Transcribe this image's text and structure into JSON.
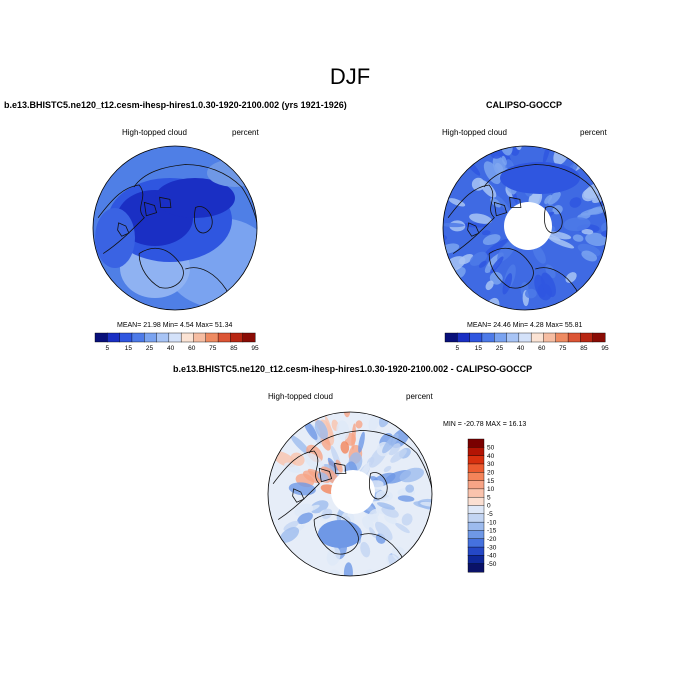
{
  "main_title": "DJF",
  "panels": [
    {
      "title": "b.e13.BHISTC5.ne120_t12.cesm-ihesp-hires1.0.30-1920-2100.002 (yrs 1921-1926)",
      "left_string": "High-topped cloud",
      "right_string": "percent",
      "stats": {
        "mean": "21.98",
        "min": "4.54",
        "max": "51.34"
      },
      "stats_text": "MEAN=  21.98  Min=    4.54  Max=  51.34",
      "pole_gap": false
    },
    {
      "title": "CALIPSO-GOCCP",
      "left_string": "High-topped cloud",
      "right_string": "percent",
      "stats": {
        "mean": "24.46",
        "min": "4.28",
        "max": "55.81"
      },
      "stats_text": "MEAN=  24.46  Min=    4.28  Max=  55.81",
      "pole_gap": true
    },
    {
      "title": "b.e13.BHISTC5.ne120_t12.cesm-ihesp-hires1.0.30-1920-2100.002 - CALIPSO-GOCCP",
      "left_string": "High-topped cloud",
      "right_string": "percent",
      "stats": {
        "min": "-20.78",
        "max": "16.13"
      },
      "stats_text": "MIN = -20.78 MAX =  16.13",
      "pole_gap": true
    }
  ],
  "colorbars": {
    "absolute": {
      "labels": [
        "5",
        "15",
        "25",
        "40",
        "60",
        "75",
        "85",
        "95"
      ],
      "colors": [
        "#08107a",
        "#1a2fc4",
        "#2f56e0",
        "#4d7ae8",
        "#7aa3f0",
        "#a8c4f5",
        "#d4e2fa",
        "#fbe3d4",
        "#f6bda2",
        "#ee8b62",
        "#dc5535",
        "#b82612",
        "#8a0c05"
      ]
    },
    "difference": {
      "labels": [
        "50",
        "40",
        "30",
        "20",
        "15",
        "10",
        "5",
        "0",
        "-5",
        "-10",
        "-15",
        "-20",
        "-30",
        "-40",
        "-50"
      ],
      "colors": [
        "#7a0000",
        "#b31404",
        "#d8300f",
        "#ec5b30",
        "#f4845a",
        "#f7a486",
        "#fac3ad",
        "#fbdfd2",
        "#dfe8f8",
        "#c3d5f3",
        "#9dbbee",
        "#6f98e6",
        "#4571de",
        "#2548c6",
        "#0f289a",
        "#0a1268"
      ]
    }
  },
  "chart_data": [
    {
      "type": "heatmap",
      "title": "b.e13.BHISTC5.ne120_t12.cesm-ihesp-hires1.0.30-1920-2100.002 (yrs 1921-1926)",
      "variable": "High-topped cloud",
      "units": "percent",
      "projection": "north polar stereographic",
      "season": "DJF",
      "mean": 21.98,
      "min": 4.54,
      "max": 51.34,
      "contour_levels": [
        5,
        10,
        15,
        20,
        25,
        30,
        40,
        50,
        60,
        70,
        75,
        80,
        85,
        90,
        95
      ]
    },
    {
      "type": "heatmap",
      "title": "CALIPSO-GOCCP",
      "variable": "High-topped cloud",
      "units": "percent",
      "projection": "north polar stereographic",
      "season": "DJF",
      "mean": 24.46,
      "min": 4.28,
      "max": 55.81,
      "contour_levels": [
        5,
        10,
        15,
        20,
        25,
        30,
        40,
        50,
        60,
        70,
        75,
        80,
        85,
        90,
        95
      ]
    },
    {
      "type": "heatmap",
      "title": "b.e13.BHISTC5.ne120_t12.cesm-ihesp-hires1.0.30-1920-2100.002 - CALIPSO-GOCCP",
      "variable": "High-topped cloud",
      "units": "percent",
      "projection": "north polar stereographic",
      "season": "DJF",
      "min": -20.78,
      "max": 16.13,
      "contour_levels": [
        -50,
        -40,
        -30,
        -20,
        -15,
        -10,
        -5,
        0,
        5,
        10,
        15,
        20,
        30,
        40,
        50
      ]
    }
  ]
}
